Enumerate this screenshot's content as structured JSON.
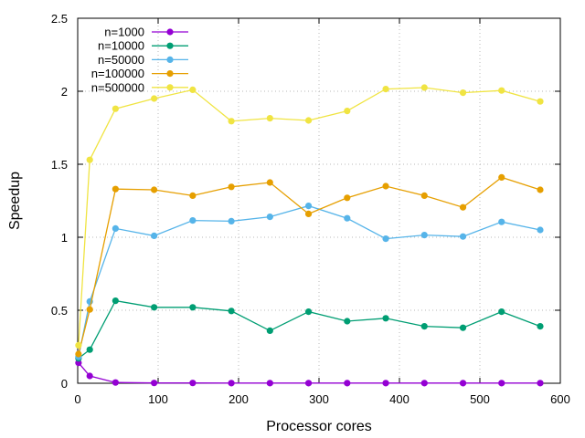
{
  "chart_data": {
    "type": "line",
    "title": "",
    "xlabel": "Processor cores",
    "ylabel": "Speedup",
    "xlim": [
      0,
      600
    ],
    "ylim": [
      0,
      2.5
    ],
    "xticks": [
      0,
      100,
      200,
      300,
      400,
      500,
      600
    ],
    "xtick_labels": [
      "0",
      "100",
      "200",
      "300",
      "400",
      "500",
      "600"
    ],
    "yticks": [
      0,
      0.5,
      1,
      1.5,
      2,
      2.5
    ],
    "ytick_labels": [
      "0",
      "0.5",
      "1",
      "1.5",
      "2",
      "2.5"
    ],
    "grid": true,
    "legend_position": "top-left",
    "x": [
      1,
      15,
      47,
      95,
      143,
      191,
      239,
      287,
      335,
      383,
      431,
      479,
      527,
      575
    ],
    "series": [
      {
        "name": "n=1000",
        "color": "#9400d3",
        "values": [
          0.14,
          0.05,
          0.005,
          0.002,
          0.002,
          0.001,
          0.001,
          0.001,
          0.001,
          0.001,
          0.001,
          0.001,
          0.001,
          0.001
        ]
      },
      {
        "name": "n=10000",
        "color": "#009e73",
        "values": [
          0.17,
          0.23,
          0.565,
          0.52,
          0.52,
          0.495,
          0.36,
          0.49,
          0.425,
          0.445,
          0.39,
          0.38,
          0.49,
          0.39
        ]
      },
      {
        "name": "n=50000",
        "color": "#56b4e9",
        "values": [
          0.18,
          0.56,
          1.06,
          1.01,
          1.115,
          1.11,
          1.14,
          1.215,
          1.13,
          0.99,
          1.015,
          1.005,
          1.105,
          1.05
        ]
      },
      {
        "name": "n=100000",
        "color": "#e69f00",
        "values": [
          0.2,
          0.505,
          1.33,
          1.325,
          1.285,
          1.345,
          1.375,
          1.16,
          1.27,
          1.35,
          1.285,
          1.205,
          1.41,
          1.325
        ]
      },
      {
        "name": "n=500000",
        "color": "#f0e442",
        "values": [
          0.26,
          1.53,
          1.88,
          1.95,
          2.01,
          1.795,
          1.815,
          1.8,
          1.865,
          2.015,
          2.025,
          1.99,
          2.005,
          1.93
        ]
      }
    ]
  }
}
